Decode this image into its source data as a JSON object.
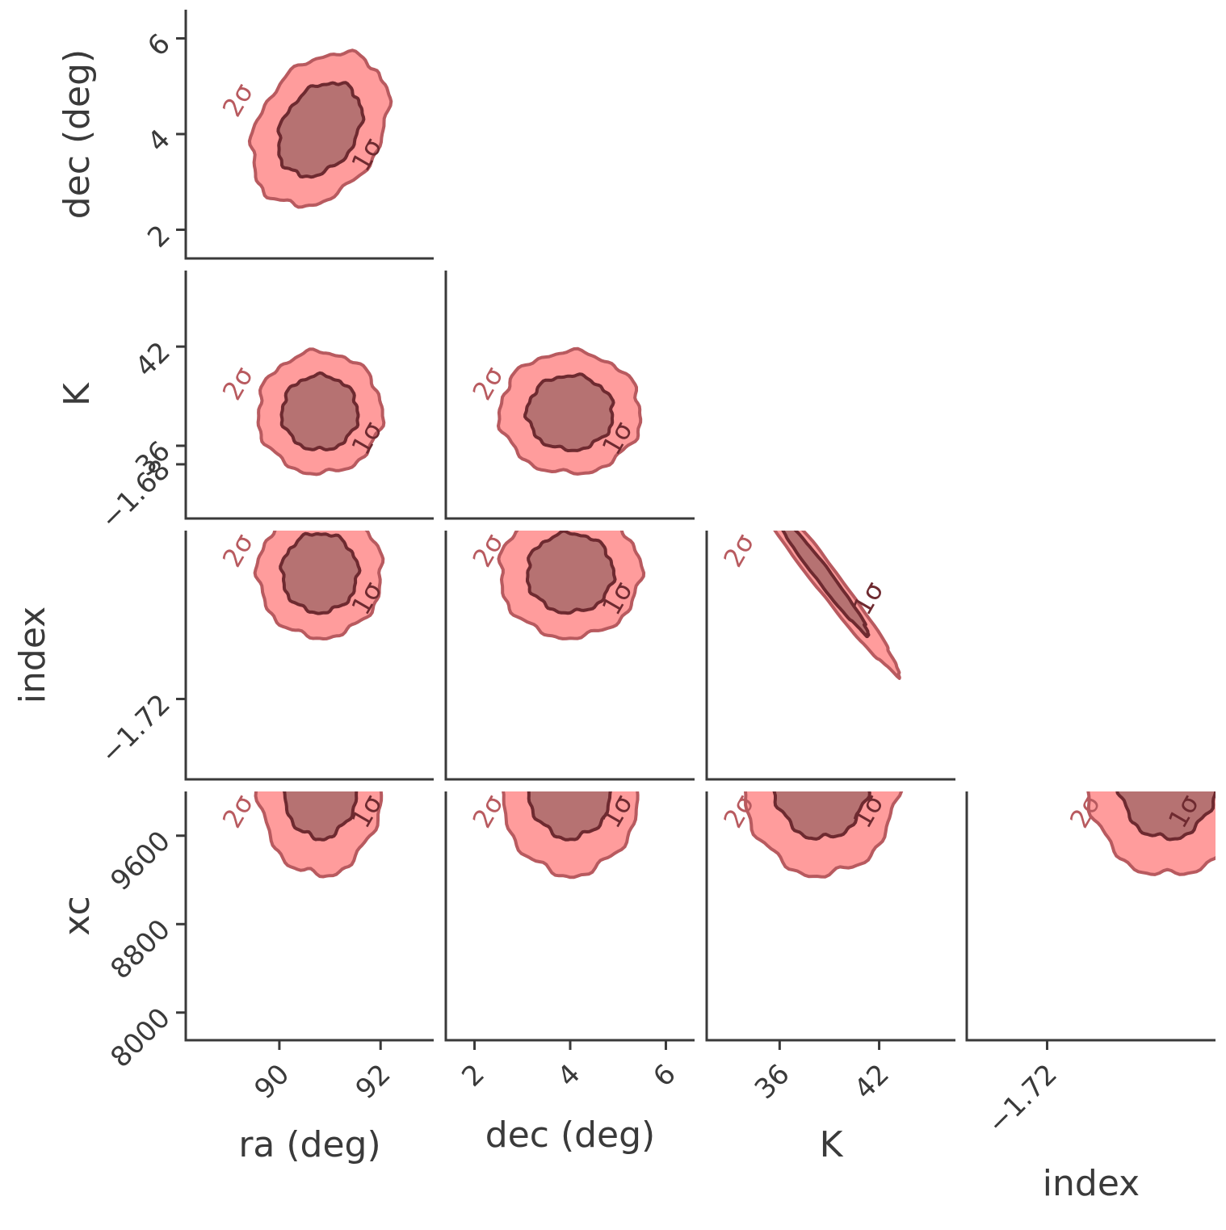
{
  "chart_data": {
    "type": "corner",
    "description_style": "triangular corner plot of 2D posterior contours",
    "parameters": [
      "ra (deg)",
      "dec (deg)",
      "K",
      "index",
      "xc"
    ],
    "contour_levels": [
      "1σ",
      "2σ"
    ],
    "colors": {
      "outer_fill": "#ff9c9c",
      "inner_fill": "#b67272",
      "outer_edge": "#b85a5f",
      "inner_edge": "#6e2a30",
      "axis": "#3a3a3a",
      "text": "#3a3a3a"
    },
    "axes": {
      "ra": {
        "label": "ra (deg)",
        "ticks": [
          90,
          92
        ],
        "tick_labels": [
          "90",
          "92"
        ],
        "range": [
          88.15,
          93.05
        ]
      },
      "dec": {
        "label": "dec (deg)",
        "ticks": [
          2,
          4,
          6
        ],
        "tick_labels": [
          "2",
          "4",
          "6"
        ],
        "range": [
          1.4,
          6.6
        ]
      },
      "K": {
        "label": "K",
        "ticks": [
          36,
          42
        ],
        "tick_labels": [
          "36",
          "42"
        ],
        "range": [
          31.6,
          46.6
        ]
      },
      "index": {
        "label": "index",
        "ticks": [
          -1.72,
          -1.68
        ],
        "tick_labels": [
          "−1.72",
          "−1.68"
        ],
        "range": [
          -1.7337,
          -1.6913
        ]
      },
      "xc": {
        "label": "xc",
        "ticks": [
          8000,
          8800,
          9600
        ],
        "tick_labels": [
          "8000",
          "8800",
          "9600"
        ],
        "range": [
          7750,
          10000
        ]
      }
    },
    "panels": [
      {
        "row": "dec",
        "col": "ra",
        "center": [
          90.8,
          4.1
        ],
        "sigma": [
          0.55,
          0.65
        ],
        "corr": 0.3
      },
      {
        "row": "K",
        "col": "ra",
        "center": [
          90.8,
          38.0
        ],
        "sigma": [
          0.5,
          1.5
        ],
        "corr": 0.0
      },
      {
        "row": "K",
        "col": "dec",
        "center": [
          4.0,
          38.0
        ],
        "sigma": [
          0.6,
          1.5
        ],
        "corr": 0.0
      },
      {
        "row": "index",
        "col": "ra",
        "center": [
          90.8,
          -1.6985
        ],
        "sigma": [
          0.5,
          0.0045
        ],
        "corr": 0.0
      },
      {
        "row": "index",
        "col": "dec",
        "center": [
          4.0,
          -1.6985
        ],
        "sigma": [
          0.6,
          0.0045
        ],
        "corr": 0.0
      },
      {
        "row": "index",
        "col": "K",
        "center": [
          38.5,
          -1.6985
        ],
        "sigma": [
          1.9,
          0.007
        ],
        "corr": -0.98
      },
      {
        "row": "xc",
        "col": "ra",
        "center": [
          90.8,
          10100
        ],
        "sigma": [
          0.5,
          350
        ],
        "corr": 0.0
      },
      {
        "row": "xc",
        "col": "dec",
        "center": [
          4.0,
          10100
        ],
        "sigma": [
          0.6,
          350
        ],
        "corr": 0.0
      },
      {
        "row": "xc",
        "col": "K",
        "center": [
          38.5,
          10100
        ],
        "sigma": [
          1.9,
          350
        ],
        "corr": 0.0
      },
      {
        "row": "xc",
        "col": "index",
        "center": [
          -1.6995,
          10100
        ],
        "sigma": [
          0.0055,
          350
        ],
        "corr": 0.0
      }
    ]
  }
}
